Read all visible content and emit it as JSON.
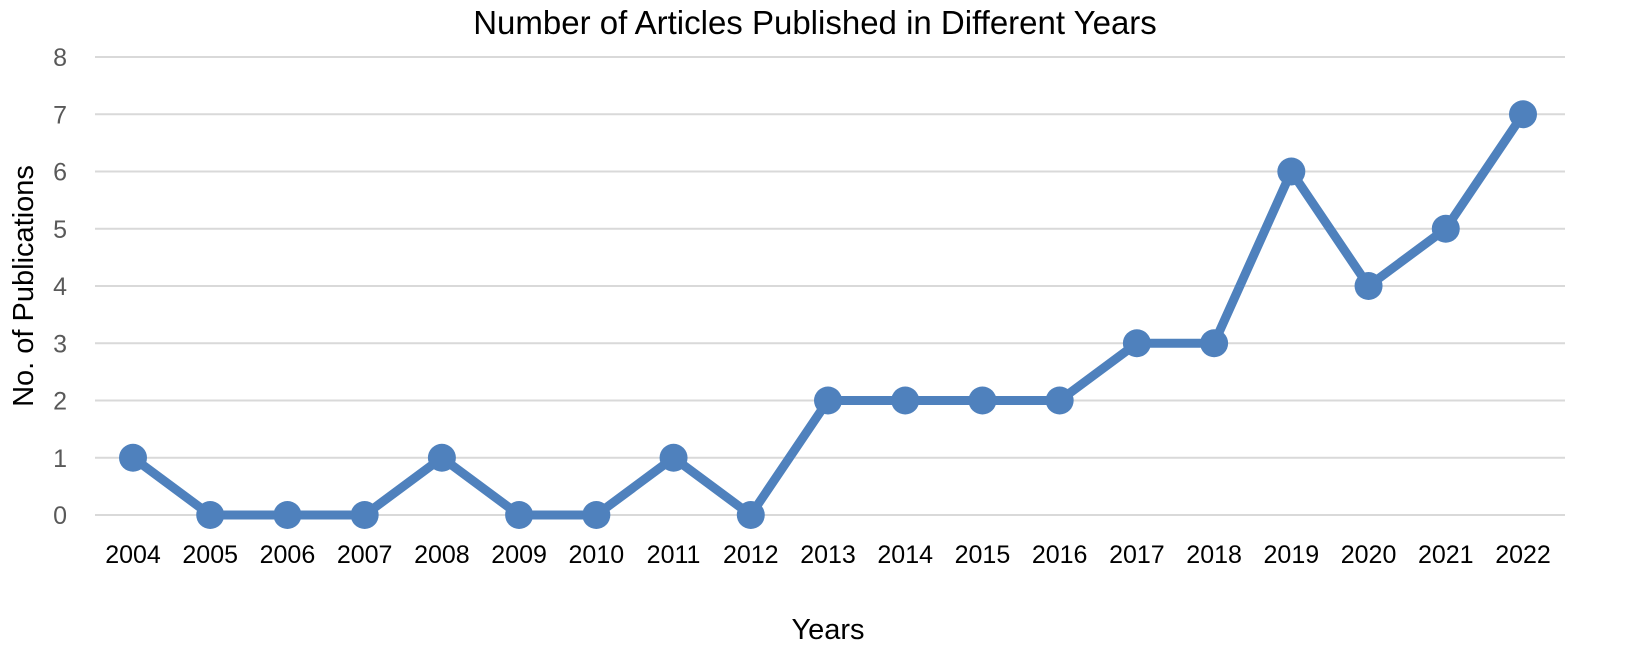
{
  "chart_data": {
    "type": "line",
    "title": "Number of Articles Published in Different Years",
    "xlabel": "Years",
    "ylabel": "No. of Publications",
    "categories": [
      "2004",
      "2005",
      "2006",
      "2007",
      "2008",
      "2009",
      "2010",
      "2011",
      "2012",
      "2013",
      "2014",
      "2015",
      "2016",
      "2017",
      "2018",
      "2019",
      "2020",
      "2021",
      "2022"
    ],
    "series": [
      {
        "values": [
          1,
          0,
          0,
          0,
          1,
          0,
          0,
          1,
          0,
          2,
          2,
          2,
          2,
          3,
          3,
          6,
          4,
          5,
          7
        ],
        "color": "#4f81bd"
      }
    ],
    "ylim": [
      0,
      8
    ],
    "yticks": [
      "0",
      "1",
      "2",
      "3",
      "4",
      "5",
      "6",
      "7",
      "8"
    ],
    "grid": true,
    "legend": "none",
    "markers": "circle"
  }
}
